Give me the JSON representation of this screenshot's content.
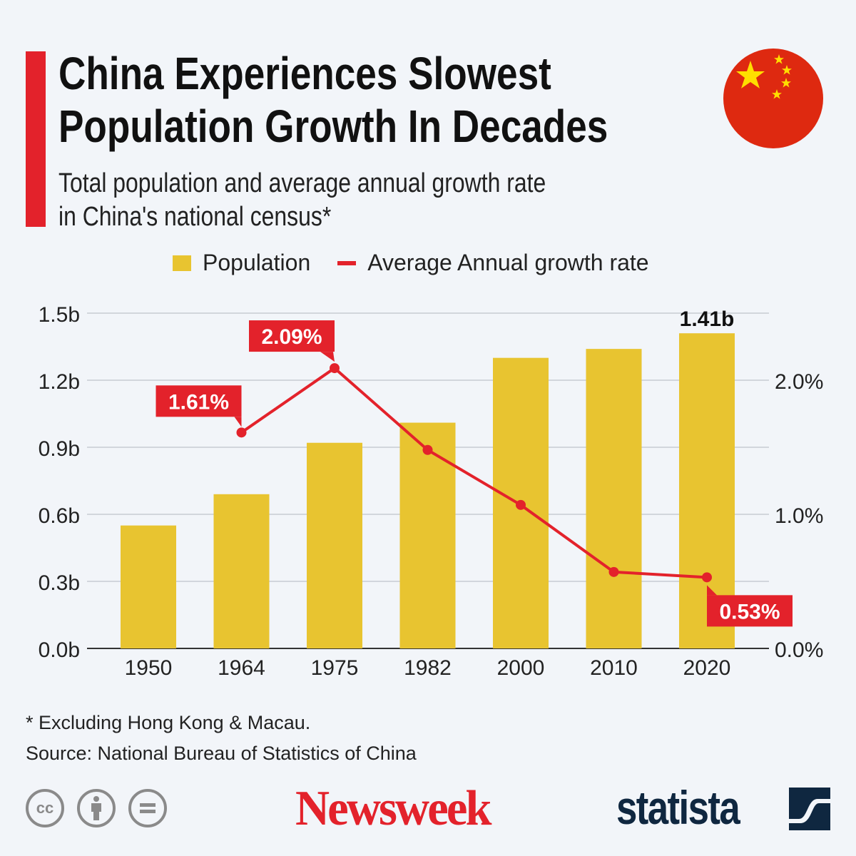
{
  "header": {
    "title_line1": "China Experiences Slowest",
    "title_line2": "Population Growth In Decades",
    "subtitle_line1": "Total population and average annual growth rate",
    "subtitle_line2": "in China's national census*",
    "flag_icon": "china-flag"
  },
  "chart_data": {
    "type": "bar+line",
    "categories": [
      "1950",
      "1964",
      "1975",
      "1982",
      "2000",
      "2010",
      "2020"
    ],
    "series": [
      {
        "name": "Population",
        "type": "bar",
        "axis": "left",
        "unit": "b",
        "values": [
          0.55,
          0.69,
          0.92,
          1.01,
          1.3,
          1.34,
          1.41
        ],
        "color": "#e8c430"
      },
      {
        "name": "Average Annual growth rate",
        "type": "line",
        "axis": "right",
        "unit": "%",
        "values": [
          null,
          1.61,
          2.09,
          1.48,
          1.07,
          0.57,
          0.53
        ],
        "color": "#e3222b"
      }
    ],
    "left_axis": {
      "range": [
        0,
        1.5
      ],
      "ticks": [
        "0.0b",
        "0.3b",
        "0.6b",
        "0.9b",
        "1.2b",
        "1.5b"
      ]
    },
    "right_axis": {
      "range": [
        0,
        2.5
      ],
      "ticks": [
        "0.0%",
        "1.0%",
        "2.0%"
      ]
    },
    "data_labels": [
      {
        "series": "Average Annual growth rate",
        "category": "1964",
        "text": "1.61%"
      },
      {
        "series": "Average Annual growth rate",
        "category": "1975",
        "text": "2.09%"
      },
      {
        "series": "Average Annual growth rate",
        "category": "2020",
        "text": "0.53%"
      },
      {
        "series": "Population",
        "category": "2020",
        "text": "1.41b"
      }
    ],
    "grid": true,
    "legend": "top"
  },
  "footer": {
    "note": "* Excluding Hong Kong & Macau.",
    "source": "Source: National Bureau of Statistics of China",
    "cc_label": "cc",
    "brand1": "Newsweek",
    "brand2": "statista"
  }
}
